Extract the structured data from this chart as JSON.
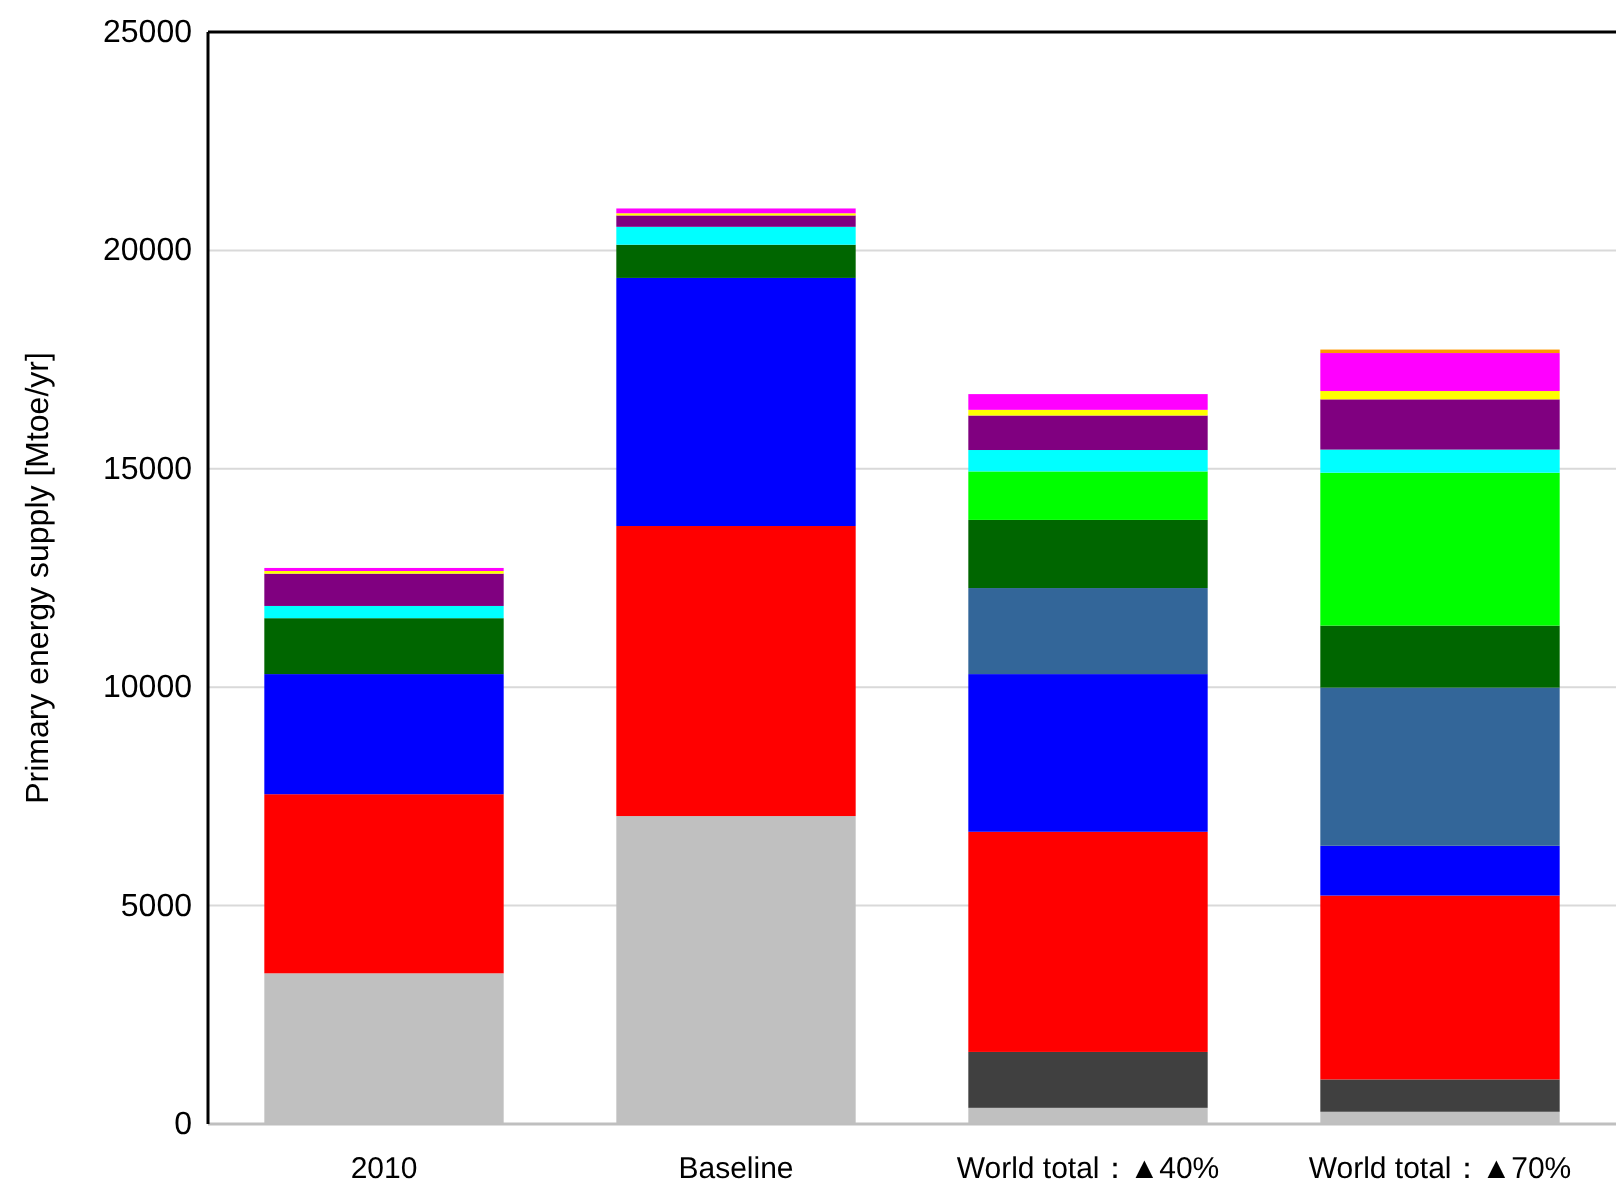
{
  "chart_data": {
    "type": "bar",
    "stacked": true,
    "ylabel": "Primary energy supply [Mtoe/yr]",
    "categories": [
      "2010",
      "Baseline",
      "World total：▲40%",
      "World total：▲70%"
    ],
    "ylim": [
      0,
      25000
    ],
    "yticks": [
      0,
      5000,
      10000,
      15000,
      20000,
      25000
    ],
    "grid": "y",
    "series": [
      {
        "color": "#c0c0c0",
        "values": [
          3450,
          7050,
          370,
          280
        ]
      },
      {
        "color": "#404040",
        "values": [
          0,
          0,
          1280,
          740
        ]
      },
      {
        "color": "#ff0000",
        "values": [
          4100,
          6640,
          5040,
          4210
        ]
      },
      {
        "color": "#0000ff",
        "values": [
          2750,
          5680,
          3610,
          1140
        ]
      },
      {
        "color": "#336699",
        "values": [
          0,
          0,
          1970,
          3620
        ]
      },
      {
        "color": "#006600",
        "values": [
          1280,
          760,
          1560,
          1420
        ]
      },
      {
        "color": "#00ff00",
        "values": [
          0,
          0,
          1110,
          3500
        ]
      },
      {
        "color": "#00ffff",
        "values": [
          280,
          410,
          490,
          530
        ]
      },
      {
        "color": "#800080",
        "values": [
          740,
          260,
          790,
          1150
        ]
      },
      {
        "color": "#ffff00",
        "values": [
          60,
          50,
          130,
          190
        ]
      },
      {
        "color": "#ff00ff",
        "values": [
          70,
          110,
          360,
          870
        ]
      },
      {
        "color": "#ff9900",
        "values": [
          0,
          0,
          0,
          80
        ]
      }
    ]
  }
}
